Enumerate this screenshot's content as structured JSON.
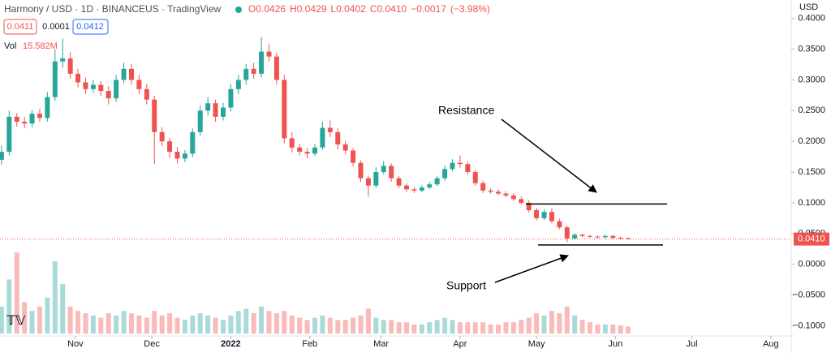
{
  "chart_data": {
    "type": "candlestick",
    "title": "Harmony / USD · 1D · BINANCEUS · TradingView",
    "ohlc": [
      {
        "key": "O",
        "value": 0.0426
      },
      {
        "key": "H",
        "value": 0.0429
      },
      {
        "key": "L",
        "value": 0.0402
      },
      {
        "key": "C",
        "value": 0.041,
        "label": "0.0410"
      },
      {
        "key": "",
        "value": -0.0017,
        "label": "−0.0017"
      },
      {
        "key": "",
        "value": -3.98,
        "label": "(−3.98%)"
      }
    ],
    "bid": 0.0411,
    "spread": 0.0001,
    "ask": 0.0412,
    "volume_label": "Vol",
    "last_volume": {
      "value": 15.582,
      "label": "15.582M"
    },
    "last_price": {
      "value": 0.041,
      "label": "0.0410"
    },
    "currency": "USD",
    "up_color": "#26a69a",
    "down_color": "#ef5350",
    "grid": false,
    "x": [
      0,
      3,
      6,
      9,
      12,
      15,
      18,
      21,
      24,
      27,
      30,
      33,
      36,
      39,
      42,
      45,
      48,
      51,
      54,
      57,
      60,
      63,
      66,
      69,
      72,
      75,
      78,
      81,
      84,
      87,
      90,
      93,
      96,
      99,
      102,
      105,
      108,
      111,
      114,
      117,
      120,
      123,
      126,
      129,
      132,
      135,
      138,
      141,
      144,
      147,
      150,
      153,
      156,
      159,
      162,
      165,
      168,
      171,
      174,
      177,
      180,
      183,
      186,
      189,
      192,
      195,
      198,
      201,
      204,
      207,
      210,
      213,
      216,
      219,
      222,
      225,
      228,
      231,
      234,
      237,
      240,
      243,
      246
    ],
    "open": [
      0.17,
      0.183,
      0.24,
      0.232,
      0.229,
      0.245,
      0.238,
      0.272,
      0.33,
      0.335,
      0.31,
      0.296,
      0.285,
      0.292,
      0.282,
      0.27,
      0.3,
      0.318,
      0.3,
      0.285,
      0.268,
      0.215,
      0.2,
      0.183,
      0.172,
      0.18,
      0.215,
      0.25,
      0.262,
      0.24,
      0.255,
      0.285,
      0.3,
      0.318,
      0.31,
      0.346,
      0.338,
      0.3,
      0.205,
      0.19,
      0.183,
      0.18,
      0.19,
      0.222,
      0.215,
      0.195,
      0.185,
      0.165,
      0.14,
      0.128,
      0.15,
      0.16,
      0.14,
      0.128,
      0.122,
      0.12,
      0.125,
      0.13,
      0.14,
      0.155,
      0.165,
      0.163,
      0.15,
      0.132,
      0.12,
      0.118,
      0.115,
      0.112,
      0.106,
      0.1,
      0.088,
      0.075,
      0.085,
      0.07,
      0.06,
      0.042,
      0.048,
      0.046,
      0.045,
      0.044,
      0.046,
      0.043,
      0.0426
    ],
    "high": [
      0.193,
      0.25,
      0.246,
      0.24,
      0.251,
      0.253,
      0.28,
      0.35,
      0.367,
      0.345,
      0.318,
      0.304,
      0.3,
      0.298,
      0.29,
      0.308,
      0.328,
      0.326,
      0.308,
      0.293,
      0.274,
      0.223,
      0.206,
      0.191,
      0.186,
      0.221,
      0.258,
      0.272,
      0.268,
      0.263,
      0.293,
      0.308,
      0.326,
      0.328,
      0.37,
      0.358,
      0.344,
      0.308,
      0.215,
      0.196,
      0.189,
      0.196,
      0.232,
      0.234,
      0.221,
      0.201,
      0.189,
      0.169,
      0.144,
      0.158,
      0.168,
      0.164,
      0.144,
      0.132,
      0.126,
      0.129,
      0.134,
      0.144,
      0.161,
      0.171,
      0.177,
      0.167,
      0.154,
      0.136,
      0.124,
      0.122,
      0.119,
      0.116,
      0.11,
      0.104,
      0.092,
      0.089,
      0.091,
      0.074,
      0.063,
      0.051,
      0.05,
      0.048,
      0.047,
      0.048,
      0.048,
      0.045,
      0.0429
    ],
    "low": [
      0.162,
      0.177,
      0.224,
      0.221,
      0.223,
      0.232,
      0.232,
      0.266,
      0.32,
      0.302,
      0.288,
      0.277,
      0.279,
      0.274,
      0.26,
      0.264,
      0.294,
      0.292,
      0.277,
      0.26,
      0.163,
      0.192,
      0.173,
      0.164,
      0.166,
      0.174,
      0.209,
      0.242,
      0.232,
      0.234,
      0.249,
      0.277,
      0.292,
      0.302,
      0.304,
      0.33,
      0.292,
      0.197,
      0.182,
      0.177,
      0.172,
      0.176,
      0.186,
      0.207,
      0.187,
      0.179,
      0.159,
      0.134,
      0.11,
      0.124,
      0.146,
      0.134,
      0.124,
      0.118,
      0.116,
      0.117,
      0.122,
      0.127,
      0.136,
      0.151,
      0.157,
      0.146,
      0.128,
      0.116,
      0.115,
      0.112,
      0.109,
      0.103,
      0.097,
      0.084,
      0.071,
      0.072,
      0.067,
      0.057,
      0.036,
      0.04,
      0.044,
      0.043,
      0.042,
      0.042,
      0.041,
      0.04,
      0.0402
    ],
    "close": [
      0.183,
      0.24,
      0.232,
      0.229,
      0.245,
      0.238,
      0.272,
      0.33,
      0.335,
      0.31,
      0.296,
      0.285,
      0.292,
      0.282,
      0.27,
      0.3,
      0.318,
      0.3,
      0.285,
      0.268,
      0.215,
      0.2,
      0.183,
      0.172,
      0.18,
      0.215,
      0.25,
      0.262,
      0.24,
      0.255,
      0.285,
      0.3,
      0.318,
      0.31,
      0.346,
      0.338,
      0.3,
      0.205,
      0.19,
      0.183,
      0.18,
      0.19,
      0.222,
      0.215,
      0.195,
      0.185,
      0.165,
      0.14,
      0.128,
      0.15,
      0.16,
      0.14,
      0.128,
      0.122,
      0.12,
      0.125,
      0.13,
      0.14,
      0.155,
      0.165,
      0.163,
      0.15,
      0.132,
      0.12,
      0.118,
      0.115,
      0.112,
      0.106,
      0.1,
      0.088,
      0.075,
      0.085,
      0.07,
      0.06,
      0.042,
      0.048,
      0.046,
      0.045,
      0.044,
      0.046,
      0.043,
      0.042,
      0.041
    ],
    "volume": [
      60,
      120,
      180,
      70,
      50,
      60,
      80,
      160,
      110,
      60,
      50,
      45,
      40,
      35,
      45,
      40,
      50,
      45,
      40,
      35,
      50,
      40,
      45,
      35,
      30,
      40,
      45,
      40,
      35,
      30,
      40,
      50,
      55,
      45,
      60,
      50,
      45,
      50,
      40,
      35,
      30,
      35,
      40,
      35,
      30,
      30,
      35,
      40,
      55,
      35,
      30,
      30,
      25,
      25,
      20,
      20,
      25,
      30,
      35,
      30,
      25,
      25,
      25,
      25,
      20,
      20,
      25,
      25,
      30,
      35,
      45,
      40,
      50,
      45,
      60,
      40,
      30,
      25,
      20,
      20,
      20,
      18,
      15.582
    ],
    "xlim": [
      -0.6,
      310
    ],
    "xticks": [
      {
        "value": 29,
        "label": "Nov"
      },
      {
        "value": 59,
        "label": "Dec"
      },
      {
        "value": 90,
        "label": "2022"
      },
      {
        "value": 121,
        "label": "Feb"
      },
      {
        "value": 149,
        "label": "Mar"
      },
      {
        "value": 180,
        "label": "Apr"
      },
      {
        "value": 210,
        "label": "May"
      },
      {
        "value": 241,
        "label": "Jun"
      },
      {
        "value": 271,
        "label": "Jul"
      },
      {
        "value": 302,
        "label": "Aug"
      }
    ],
    "ylim": [
      -0.118,
      0.43
    ],
    "yticks": [
      {
        "value": 0.4,
        "label": "0.4000"
      },
      {
        "value": 0.35,
        "label": "0.3500"
      },
      {
        "value": 0.3,
        "label": "0.3000"
      },
      {
        "value": 0.25,
        "label": "0.2500"
      },
      {
        "value": 0.2,
        "label": "0.2000"
      },
      {
        "value": 0.15,
        "label": "0.1500"
      },
      {
        "value": 0.1,
        "label": "0.1000"
      },
      {
        "value": 0.05,
        "label": "0.0500"
      },
      {
        "value": 0,
        "label": "0.0000"
      },
      {
        "value": -0.05,
        "label": "−0.0500"
      },
      {
        "value": -0.1,
        "label": "−0.1000"
      }
    ],
    "annotations": [
      {
        "text": "Resistance",
        "level": 0.098
      },
      {
        "text": "Support",
        "level": 0.0314
      }
    ]
  }
}
